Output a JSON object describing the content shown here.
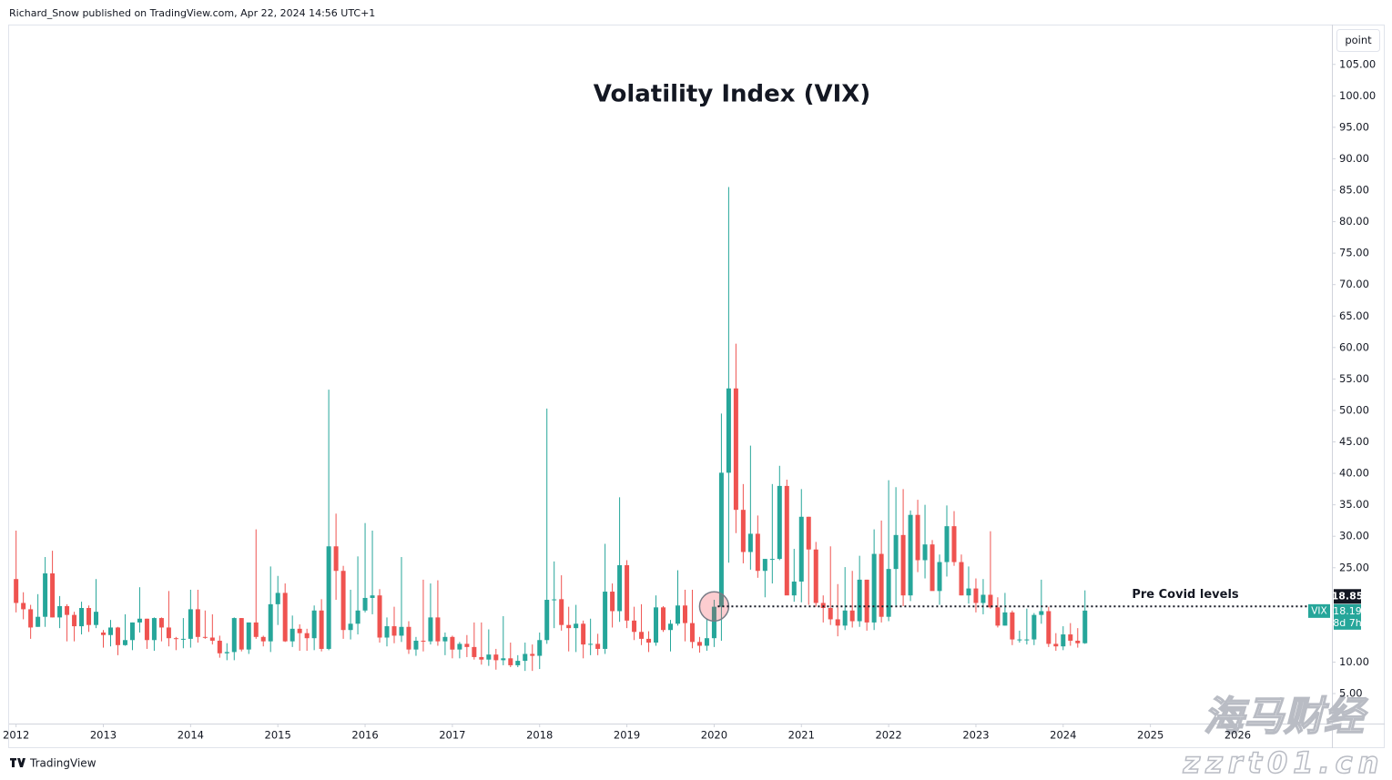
{
  "header": "Richard_Snow published on TradingView.com, Apr 22, 2024 14:56 UTC+1",
  "footer": "TradingView",
  "scale_button": "point",
  "watermark": [
    "海马财经",
    "zzrt01.cn"
  ],
  "chart_data": {
    "type": "candlestick",
    "title": "Volatility Index (VIX)",
    "symbol": "VIX",
    "countdown": "8d 7h",
    "up_color": "#26a69a",
    "down_color": "#ef5350",
    "annotation": {
      "text": "Pre Covid levels",
      "value": 18.85
    },
    "ylim": [
      0.23,
      111.33
    ],
    "yticks": [
      {
        "value": 5,
        "label": "5.00"
      },
      {
        "value": 10,
        "label": "10.00"
      },
      {
        "value": 25,
        "label": "25.00"
      },
      {
        "value": 30,
        "label": "30.00"
      },
      {
        "value": 35,
        "label": "35.00"
      },
      {
        "value": 40,
        "label": "40.00"
      },
      {
        "value": 45,
        "label": "45.00"
      },
      {
        "value": 50,
        "label": "50.00"
      },
      {
        "value": 55,
        "label": "55.00"
      },
      {
        "value": 60,
        "label": "60.00"
      },
      {
        "value": 65,
        "label": "65.00"
      },
      {
        "value": 70,
        "label": "70.00"
      },
      {
        "value": 75,
        "label": "75.00"
      },
      {
        "value": 80,
        "label": "80.00"
      },
      {
        "value": 85,
        "label": "85.00"
      },
      {
        "value": 90,
        "label": "90.00"
      },
      {
        "value": 95,
        "label": "95.00"
      },
      {
        "value": 100,
        "label": "100.00"
      },
      {
        "value": 105,
        "label": "105.00"
      }
    ],
    "xlim": [
      2011.92,
      2027.08
    ],
    "xticks": [
      2012,
      2013,
      2014,
      2015,
      2016,
      2017,
      2018,
      2019,
      2020,
      2021,
      2022,
      2023,
      2024,
      2025,
      2026
    ],
    "candles": [
      [
        23.2,
        30.9,
        17.9,
        19.4
      ],
      [
        19.4,
        21.1,
        16.8,
        18.4
      ],
      [
        18.4,
        19.1,
        13.7,
        15.5
      ],
      [
        15.6,
        20.8,
        15.6,
        17.2
      ],
      [
        17.2,
        26.7,
        15.6,
        24.1
      ],
      [
        24.1,
        27.7,
        17.1,
        17.1
      ],
      [
        17.1,
        20.5,
        15.4,
        18.9
      ],
      [
        18.9,
        19.2,
        13.3,
        17.5
      ],
      [
        17.5,
        18,
        13.3,
        15.7
      ],
      [
        15.7,
        19.6,
        14.4,
        18.6
      ],
      [
        18.6,
        19,
        14.8,
        15.9
      ],
      [
        15.9,
        23.2,
        15.4,
        18
      ],
      [
        14.7,
        15.1,
        12.3,
        14.3
      ],
      [
        14.3,
        16.7,
        12.5,
        15.5
      ],
      [
        15.5,
        15.6,
        11.1,
        12.7
      ],
      [
        12.7,
        17.6,
        12.6,
        13.5
      ],
      [
        13.5,
        16.3,
        11.9,
        16.3
      ],
      [
        16.3,
        21.9,
        14.7,
        16.9
      ],
      [
        16.9,
        16.9,
        12.1,
        13.5
      ],
      [
        13.5,
        17.1,
        11.8,
        17
      ],
      [
        17,
        17.1,
        13.3,
        15.5
      ],
      [
        15.5,
        21.3,
        12.5,
        13.8
      ],
      [
        13.8,
        14,
        11.9,
        13.7
      ],
      [
        13.7,
        17,
        12.2,
        13.7
      ],
      [
        13.7,
        21.5,
        12.3,
        18.4
      ],
      [
        18.4,
        21.5,
        13.1,
        14
      ],
      [
        14,
        18.2,
        13.7,
        13.9
      ],
      [
        13.9,
        17.6,
        12.8,
        13.4
      ],
      [
        13.4,
        14.2,
        10.7,
        11.4
      ],
      [
        11.4,
        13,
        10.3,
        11.6
      ],
      [
        11.6,
        17.1,
        10.3,
        17
      ],
      [
        17,
        17,
        11.7,
        12
      ],
      [
        12,
        16.3,
        11.3,
        16.3
      ],
      [
        16.3,
        31.1,
        13.7,
        14
      ],
      [
        14,
        14.2,
        12.5,
        13.3
      ],
      [
        13.3,
        25.2,
        11.6,
        19.2
      ],
      [
        19.2,
        23.7,
        15.9,
        21
      ],
      [
        21,
        22.5,
        13.2,
        13.3
      ],
      [
        13.3,
        17.4,
        12.4,
        15.3
      ],
      [
        15.3,
        16,
        11.8,
        14.6
      ],
      [
        14.6,
        15.3,
        11.8,
        13.8
      ],
      [
        13.8,
        19,
        11.9,
        18.2
      ],
      [
        18.2,
        20,
        11.7,
        12.1
      ],
      [
        12.1,
        53.3,
        11.9,
        28.4
      ],
      [
        28.4,
        33.6,
        19.9,
        24.5
      ],
      [
        24.5,
        25.3,
        13.7,
        15.1
      ],
      [
        15.1,
        21.5,
        13.6,
        16.1
      ],
      [
        16.1,
        26.8,
        14.4,
        18.2
      ],
      [
        18.2,
        32.1,
        17.9,
        20.2
      ],
      [
        20.2,
        30.9,
        17.6,
        20.6
      ],
      [
        20.6,
        21.6,
        13.1,
        13.9
      ],
      [
        13.9,
        17.1,
        12.5,
        15.7
      ],
      [
        15.7,
        18.8,
        13,
        14.2
      ],
      [
        14.2,
        26.7,
        13.2,
        15.6
      ],
      [
        15.6,
        16.5,
        11.3,
        12
      ],
      [
        12,
        14,
        11,
        13.4
      ],
      [
        13.4,
        23.1,
        11.7,
        13.3
      ],
      [
        13.3,
        22.5,
        12.8,
        17.1
      ],
      [
        17.1,
        23,
        12.6,
        13.3
      ],
      [
        13.3,
        14.7,
        11.1,
        14
      ],
      [
        14,
        14.2,
        10.6,
        11.99
      ],
      [
        12,
        13.2,
        10.6,
        12.9
      ],
      [
        12.9,
        14.3,
        10.8,
        12.4
      ],
      [
        12.4,
        16.3,
        10.4,
        10.8
      ],
      [
        10.8,
        16.3,
        9.6,
        10.4
      ],
      [
        10.4,
        15.2,
        9.4,
        11.2
      ],
      [
        11.2,
        12.1,
        8.8,
        10.3
      ],
      [
        10.3,
        17.3,
        9.5,
        10.6
      ],
      [
        10.6,
        13.1,
        9.2,
        9.5
      ],
      [
        9.5,
        11.1,
        9.2,
        10.2
      ],
      [
        10.2,
        13.1,
        8.6,
        11.3
      ],
      [
        11.3,
        12.8,
        8.6,
        11
      ],
      [
        11,
        14.7,
        8.9,
        13.5
      ],
      [
        13.5,
        50.3,
        12.9,
        19.9
      ],
      [
        19.9,
        26,
        15.4,
        19.97
      ],
      [
        20,
        23.8,
        15,
        15.9
      ],
      [
        15.9,
        18.8,
        11.7,
        15.4
      ],
      [
        15.4,
        19.1,
        11.6,
        16.1
      ],
      [
        16.1,
        16.6,
        10.6,
        12.8
      ],
      [
        12.8,
        16.9,
        11.1,
        12.9
      ],
      [
        12.9,
        14.5,
        11.1,
        12.1
      ],
      [
        12.1,
        28.8,
        11.3,
        21.2
      ],
      [
        21.2,
        22.5,
        15.5,
        18.1
      ],
      [
        18.1,
        36.2,
        16.4,
        25.4
      ],
      [
        25.4,
        26.2,
        15.4,
        16.6
      ],
      [
        16.6,
        18.8,
        13.5,
        14.8
      ],
      [
        14.8,
        19.2,
        12.7,
        13.7
      ],
      [
        13.7,
        14.9,
        11.6,
        13.1
      ],
      [
        13.1,
        20.6,
        12.6,
        18.7
      ],
      [
        18.7,
        18.9,
        14.8,
        15.1
      ],
      [
        15.1,
        16.7,
        11.7,
        16.1
      ],
      [
        16.1,
        24.6,
        15.8,
        19
      ],
      [
        19,
        21.5,
        13.3,
        16.2
      ],
      [
        16.2,
        21.5,
        12.2,
        13.2
      ],
      [
        13.2,
        14,
        11.5,
        12.6
      ],
      [
        12.6,
        16.9,
        11.8,
        13.8
      ],
      [
        13.8,
        19.9,
        12.4,
        18.8
      ],
      [
        18.8,
        49.5,
        13.4,
        40.1
      ],
      [
        40.1,
        85.5,
        25.8,
        53.5
      ],
      [
        53.5,
        60.6,
        30.5,
        34.2
      ],
      [
        34.2,
        38.3,
        25.7,
        27.5
      ],
      [
        27.5,
        44.4,
        24.7,
        30.4
      ],
      [
        30.4,
        33.3,
        23.4,
        24.5
      ],
      [
        24.5,
        26.4,
        20.3,
        26.4
      ],
      [
        26.4,
        38.3,
        22.5,
        26.4
      ],
      [
        26.4,
        41.2,
        26.2,
        38
      ],
      [
        38,
        39,
        20.8,
        20.6
      ],
      [
        20.6,
        28,
        19.6,
        22.8
      ],
      [
        22.8,
        37.5,
        19.5,
        33.1
      ],
      [
        33.1,
        33.1,
        19.1,
        27.9
      ],
      [
        27.9,
        29.1,
        18.8,
        19.4
      ],
      [
        19.4,
        20.6,
        16.3,
        18.6
      ],
      [
        18.6,
        28.4,
        15.9,
        16.8
      ],
      [
        16.8,
        22.4,
        14.1,
        15.8
      ],
      [
        15.8,
        25.1,
        15.1,
        18.2
      ],
      [
        18.2,
        24.5,
        15.5,
        16.5
      ],
      [
        16.5,
        26.9,
        15.6,
        23.1
      ],
      [
        23.1,
        23.1,
        15,
        16.3
      ],
      [
        16.3,
        31.1,
        15.1,
        27.2
      ],
      [
        27.2,
        32.5,
        16.3,
        17.2
      ],
      [
        17.2,
        38.9,
        16.5,
        24.8
      ],
      [
        24.8,
        37.8,
        19,
        30.2
      ],
      [
        30.2,
        37.5,
        18.9,
        20.6
      ],
      [
        20.6,
        34.1,
        19.7,
        33.4
      ],
      [
        33.4,
        35.8,
        24.3,
        26.2
      ],
      [
        26.2,
        35,
        23.3,
        28.7
      ],
      [
        28.7,
        29.4,
        21.6,
        21.3
      ],
      [
        21.3,
        27.1,
        19.1,
        25.9
      ],
      [
        25.9,
        34.9,
        23.6,
        31.6
      ],
      [
        31.6,
        34,
        25.3,
        25.9
      ],
      [
        25.9,
        27.1,
        20.6,
        20.6
      ],
      [
        20.6,
        25.2,
        19.3,
        21.7
      ],
      [
        21.7,
        23.3,
        17.9,
        19.4
      ],
      [
        19.4,
        23.2,
        17.6,
        20.7
      ],
      [
        20.7,
        30.8,
        18.5,
        18.7
      ],
      [
        18.7,
        20.3,
        15.5,
        15.8
      ],
      [
        15.8,
        21,
        15.8,
        17.9
      ],
      [
        17.9,
        18.2,
        12.7,
        13.6
      ],
      [
        13.6,
        15,
        13.1,
        13.6
      ],
      [
        13.6,
        18.5,
        12.8,
        13.6
      ],
      [
        13.6,
        17.8,
        12.7,
        17.5
      ],
      [
        17.5,
        23.1,
        16.1,
        18.1
      ],
      [
        18.1,
        18.8,
        12.4,
        12.9
      ],
      [
        12.9,
        14.6,
        11.8,
        12.5
      ],
      [
        12.5,
        15.7,
        11.9,
        14.4
      ],
      [
        14.4,
        16.2,
        12.6,
        13.4
      ],
      [
        13.4,
        15.4,
        12.3,
        13
      ],
      [
        13,
        21.4,
        12.9,
        18.19
      ]
    ]
  }
}
